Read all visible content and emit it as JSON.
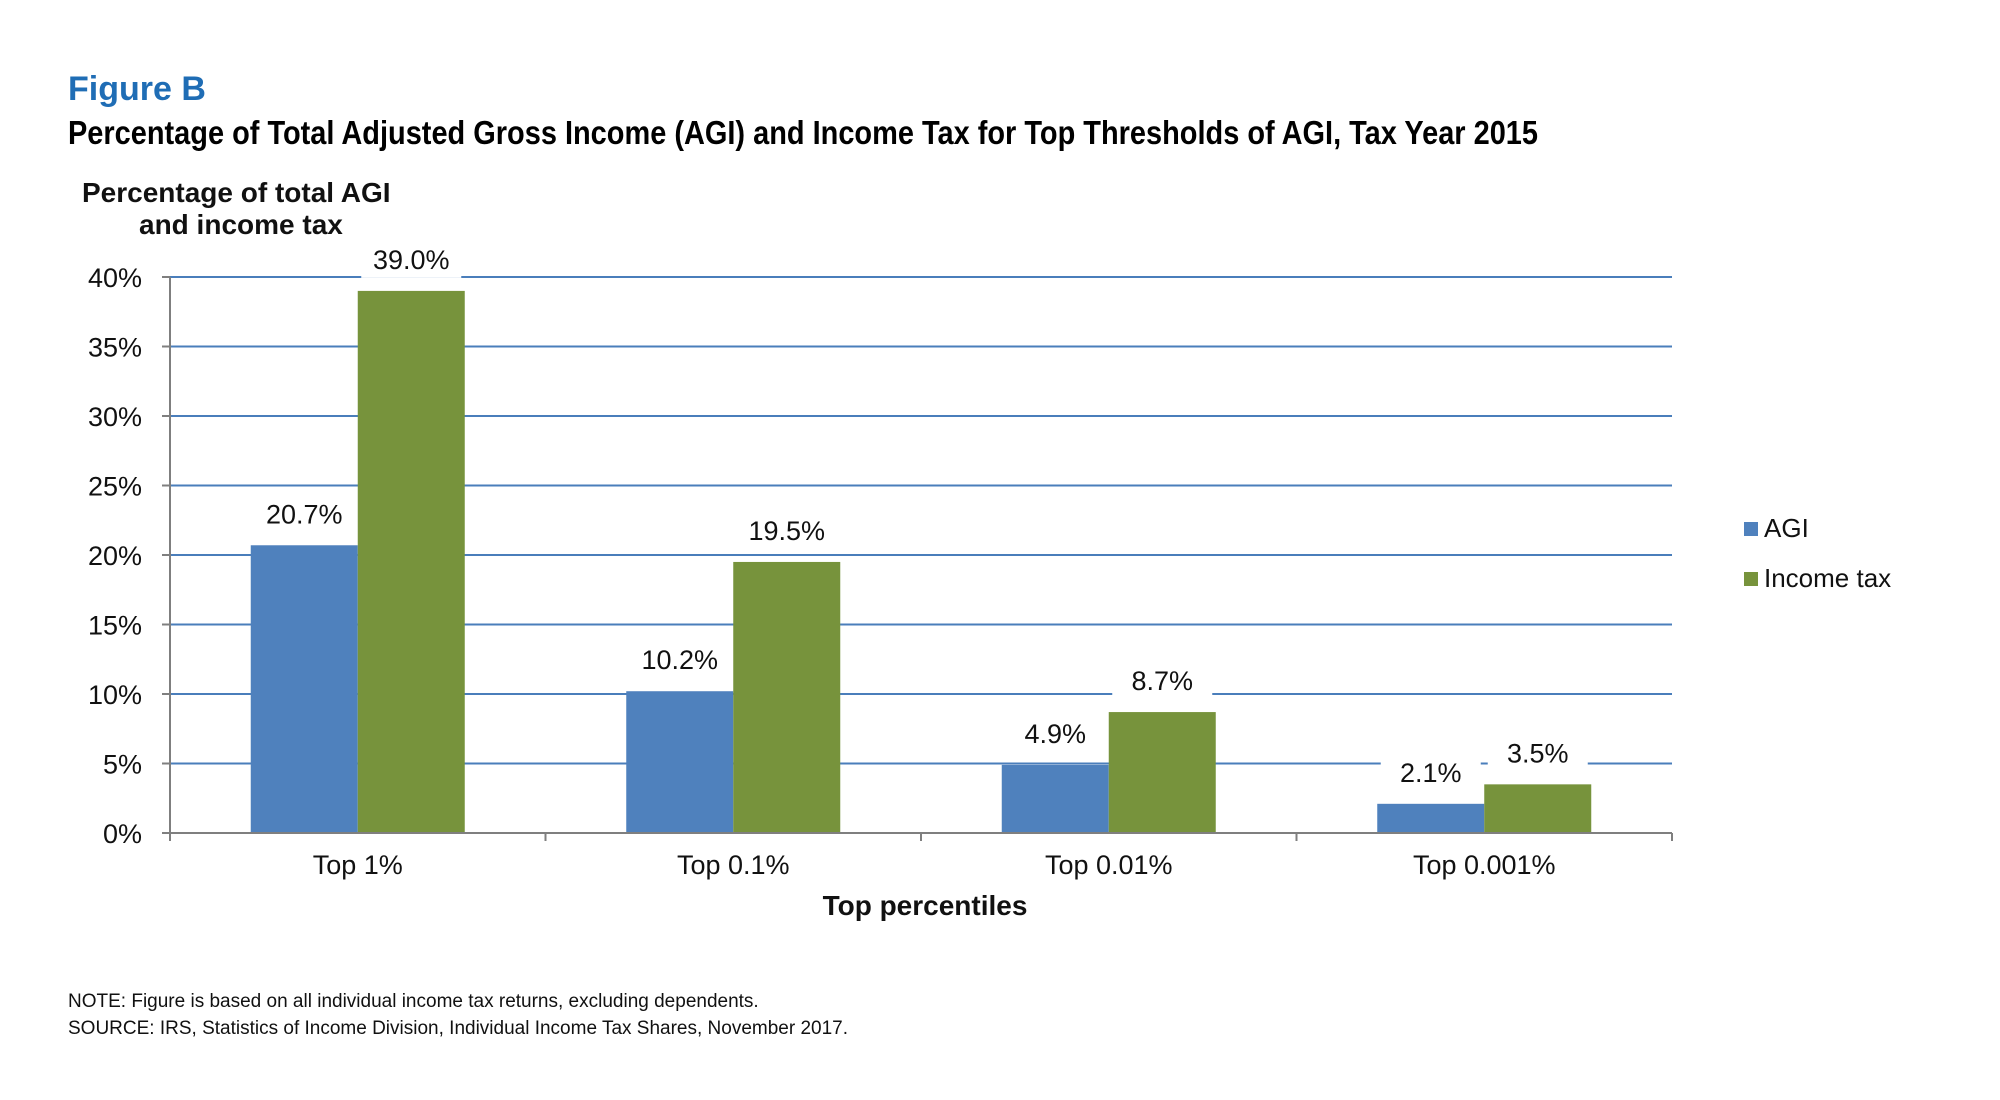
{
  "figure_label": "Figure B",
  "title": "Percentage of Total Adjusted Gross Income (AGI) and Income Tax for Top Thresholds of AGI, Tax Year 2015",
  "note": "NOTE: Figure is based on all individual income tax returns, excluding dependents.",
  "source": "SOURCE: IRS, Statistics of Income Division, Individual Income Tax Shares, November 2017.",
  "colors": {
    "agi": "#4f81bd",
    "income_tax": "#77933c",
    "grid": "#4a7ebb",
    "axis": "#7f7f7f",
    "title_accent": "#1f6db5"
  },
  "chart_data": {
    "type": "bar",
    "title": "Percentage of Total Adjusted Gross Income (AGI) and Income Tax for Top Thresholds of AGI, Tax Year 2015",
    "ylabel_line1": "Percentage of total AGI",
    "ylabel_line2": "and income tax",
    "xlabel": "Top percentiles",
    "categories": [
      "Top 1%",
      "Top 0.1%",
      "Top 0.01%",
      "Top 0.001%"
    ],
    "series": [
      {
        "name": "AGI",
        "values": [
          20.7,
          10.2,
          4.9,
          2.1
        ],
        "labels": [
          "20.7%",
          "10.2%",
          "4.9%",
          "2.1%"
        ]
      },
      {
        "name": "Income tax",
        "values": [
          39.0,
          19.5,
          8.7,
          3.5
        ],
        "labels": [
          "39.0%",
          "19.5%",
          "8.7%",
          "3.5%"
        ]
      }
    ],
    "ylim": [
      0,
      40
    ],
    "yticks": [
      0,
      5,
      10,
      15,
      20,
      25,
      30,
      35,
      40
    ],
    "ytick_labels": [
      "0%",
      "5%",
      "10%",
      "15%",
      "20%",
      "25%",
      "30%",
      "35%",
      "40%"
    ],
    "grid": true,
    "legend_position": "right"
  }
}
